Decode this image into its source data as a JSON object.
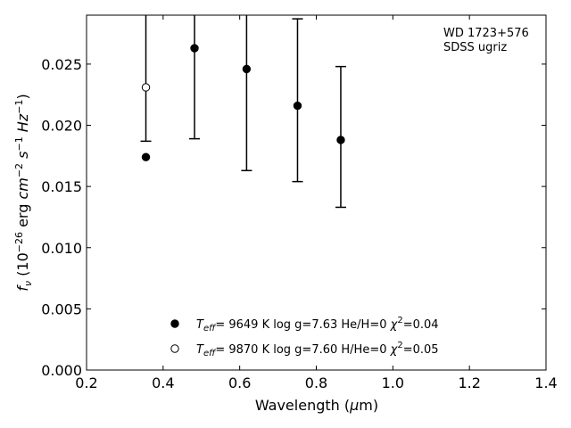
{
  "chart_data": {
    "type": "scatter",
    "xlabel": "Wavelength (μm)",
    "ylabel": "f_ν (10^−26 erg cm^−2 s^−1 Hz^−1)",
    "xlim": [
      0.2,
      1.4
    ],
    "ylim": [
      0.0,
      0.029
    ],
    "xticks": [
      "0.2",
      "0.4",
      "0.6",
      "0.8",
      "1.0",
      "1.2",
      "1.4"
    ],
    "yticks": [
      "0.000",
      "0.005",
      "0.010",
      "0.015",
      "0.020",
      "0.025"
    ],
    "annotation": [
      "WD 1723+576",
      "SDSS ugriz"
    ],
    "legend_placement": "bottom-center",
    "observed": {
      "x": [
        0.355,
        0.482,
        0.618,
        0.751,
        0.864
      ],
      "y": [
        0.0231,
        0.0263,
        0.0246,
        0.0216,
        0.0188
      ],
      "yerr_low": [
        0.0187,
        0.0189,
        0.0163,
        0.0154,
        0.0133
      ],
      "yerr_high": [
        0.029,
        0.029,
        0.029,
        0.0287,
        0.0248
      ]
    },
    "series": [
      {
        "name": "T_eff= 9649 K log g=7.63 He/H=0 χ²=0.04",
        "marker": "filled",
        "color": "#000000",
        "x": [
          0.355,
          0.482,
          0.618,
          0.751,
          0.864
        ],
        "y": [
          0.0174,
          0.0263,
          0.0246,
          0.0216,
          0.0188
        ]
      },
      {
        "name": "T_eff= 9870 K log g=7.60 H/He=0 χ²=0.05",
        "marker": "open",
        "color": "#000000",
        "x": [
          0.355
        ],
        "y": [
          0.0231
        ]
      }
    ]
  }
}
